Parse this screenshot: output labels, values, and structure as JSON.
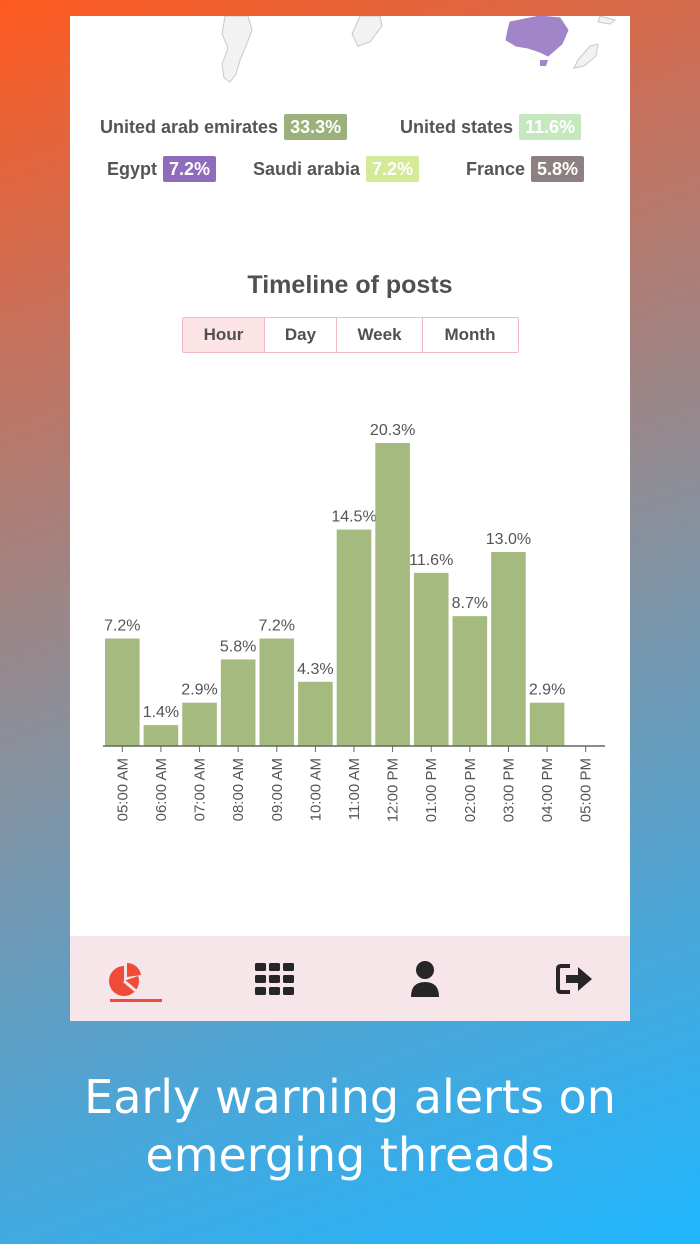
{
  "legend": [
    {
      "country": "United arab emirates",
      "pct": "33.3%",
      "color": "#9bb07a"
    },
    {
      "country": "United states",
      "pct": "11.6%",
      "color": "#c6e8bf"
    },
    {
      "country": "Egypt",
      "pct": "7.2%",
      "color": "#8e6bbd"
    },
    {
      "country": "Saudi arabia",
      "pct": "7.2%",
      "color": "#d5ea96"
    },
    {
      "country": "France",
      "pct": "5.8%",
      "color": "#8e7f80"
    }
  ],
  "timeline": {
    "title": "Timeline of posts",
    "tabs": [
      {
        "label": "Hour",
        "active": true
      },
      {
        "label": "Day",
        "active": false
      },
      {
        "label": "Week",
        "active": false
      },
      {
        "label": "Month",
        "active": false
      }
    ]
  },
  "chart_data": {
    "type": "bar",
    "title": "Timeline of posts",
    "categories": [
      "05:00 AM",
      "06:00 AM",
      "07:00 AM",
      "08:00 AM",
      "09:00 AM",
      "10:00 AM",
      "11:00 AM",
      "12:00 PM",
      "01:00 PM",
      "02:00 PM",
      "03:00 PM",
      "04:00 PM",
      "05:00 PM"
    ],
    "values": [
      7.2,
      1.4,
      2.9,
      5.8,
      7.2,
      4.3,
      14.5,
      20.3,
      11.6,
      8.7,
      13.0,
      2.9,
      0
    ],
    "labels": [
      "7.2%",
      "1.4%",
      "2.9%",
      "5.8%",
      "7.2%",
      "4.3%",
      "14.5%",
      "20.3%",
      "11.6%",
      "8.7%",
      "13.0%",
      "2.9%",
      ""
    ],
    "ylim": [
      0,
      20.3
    ],
    "bar_color": "#a5ba7e",
    "grid": false
  },
  "nav": [
    {
      "icon": "pie-chart-icon",
      "active": true
    },
    {
      "icon": "grid-icon",
      "active": false
    },
    {
      "icon": "user-icon",
      "active": false
    },
    {
      "icon": "logout-icon",
      "active": false
    }
  ],
  "accent": "#f04b38",
  "caption": {
    "line1": "Early warning alerts on",
    "line2": "emerging threads"
  }
}
